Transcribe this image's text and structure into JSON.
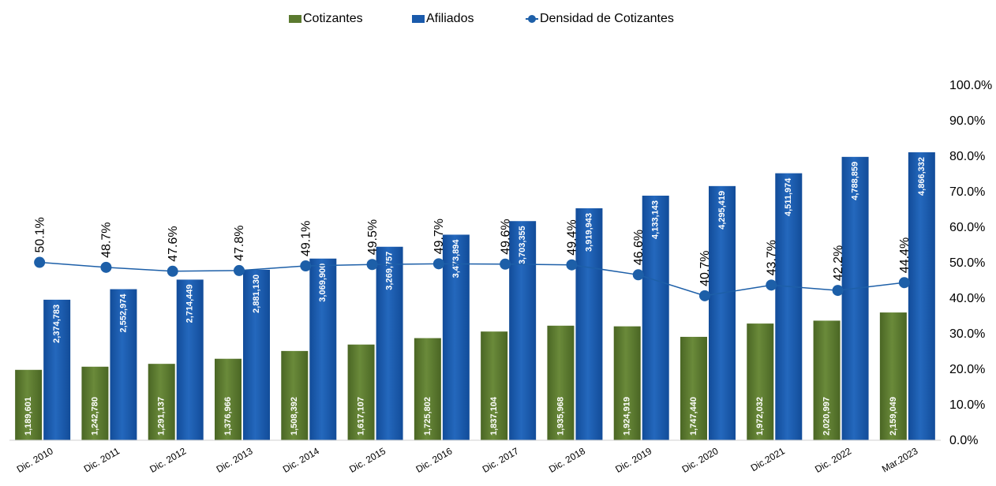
{
  "chart_data": {
    "type": "bar",
    "categories": [
      "Dic. 2010",
      "Dic. 2011",
      "Dic. 2012",
      "Dic. 2013",
      "Dic. 2014",
      "Dic. 2015",
      "Dic. 2016",
      "Dic. 2017",
      "Dic. 2018",
      "Dic. 2019",
      "Dic. 2020",
      "Dic.2021",
      "Dic. 2022",
      "Mar.2023"
    ],
    "series": [
      {
        "name": "Cotizantes",
        "type": "bar",
        "color": "#5b7a2f",
        "values": [
          1189601,
          1242780,
          1291137,
          1376966,
          1508392,
          1617107,
          1725802,
          1837104,
          1935968,
          1924919,
          1747440,
          1972032,
          2020997,
          2159049
        ],
        "labels": [
          "1,189,601",
          "1,242,780",
          "1,291,137",
          "1,376,966",
          "1,508,392",
          "1,617,107",
          "1,725,802",
          "1,837,104",
          "1,935,968",
          "1,924,919",
          "1,747,440",
          "1,972,032",
          "2,020,997",
          "2,159,049"
        ]
      },
      {
        "name": "Afiliados",
        "type": "bar",
        "color": "#1a5aab",
        "values": [
          2374783,
          2552974,
          2714449,
          2881130,
          3069900,
          3269757,
          3473894,
          3703355,
          3919943,
          4133143,
          4295419,
          4511974,
          4788859,
          4866332
        ],
        "labels": [
          "2,374,783",
          "2,552,974",
          "2,714,449",
          "2,881,130",
          "3,069,900",
          "3,269,757",
          "3,473,894",
          "3,703,355",
          "3,919,943",
          "4,133,143",
          "4,295,419",
          "4,511,974",
          "4,788,859",
          "4,866,332"
        ]
      },
      {
        "name": "Densidad de Cotizantes",
        "type": "line",
        "color": "#1d5fa8",
        "values": [
          50.1,
          48.7,
          47.6,
          47.8,
          49.1,
          49.5,
          49.7,
          49.6,
          49.4,
          46.6,
          40.7,
          43.7,
          42.2,
          44.4
        ],
        "labels": [
          "50.1%",
          "48.7%",
          "47.6%",
          "47.8%",
          "49.1%",
          "49.5%",
          "49.7%",
          "49.6%",
          "49.4%",
          "46.6%",
          "40.7%",
          "43.7%",
          "42.2%",
          "44.4%"
        ]
      }
    ],
    "y_right": {
      "ylim": [
        0,
        100
      ],
      "ticks": [
        "0.0%",
        "10.0%",
        "20.0%",
        "30.0%",
        "40.0%",
        "50.0%",
        "60.0%",
        "70.0%",
        "80.0%",
        "90.0%",
        "100.0%"
      ]
    },
    "ylim_left": [
      0,
      6000000
    ],
    "legend_position": "top-center",
    "grid": false
  }
}
